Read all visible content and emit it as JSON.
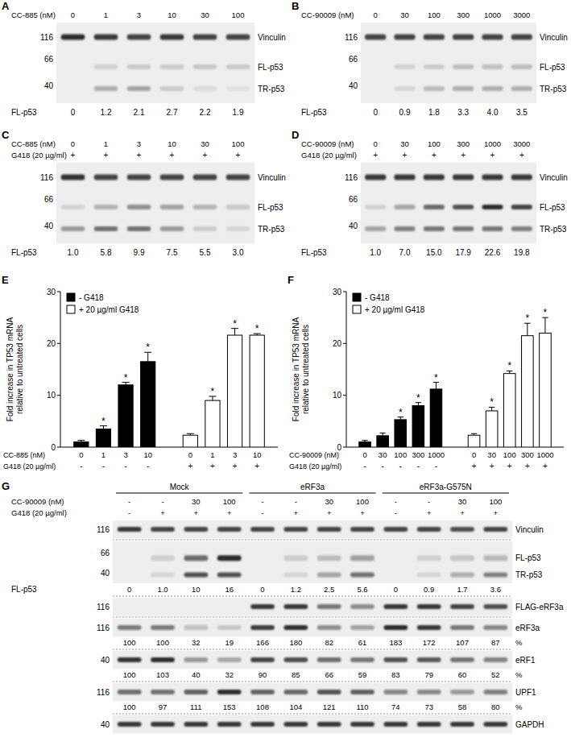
{
  "chart_data": [
    {
      "type": "bar",
      "panel": "E",
      "ylabel": [
        "Fold increase in TP53 mRNA",
        "relative to untreated cells"
      ],
      "xlabel": "CC-885 (nM)",
      "categories": [
        "0",
        "1",
        "3",
        "10",
        "0",
        "1",
        "3",
        "10"
      ],
      "second_row": {
        "label": "G418 (20 µg/ml)",
        "values": [
          "-",
          "-",
          "-",
          "-",
          "+",
          "+",
          "+",
          "+"
        ]
      },
      "series": [
        {
          "name": "- G418",
          "color": "#000000",
          "values": [
            1.0,
            3.5,
            12.0,
            16.5,
            null,
            null,
            null,
            null
          ],
          "errors": [
            0.3,
            0.6,
            0.5,
            1.8,
            null,
            null,
            null,
            null
          ],
          "significance": [
            null,
            "*",
            "*",
            "*",
            null,
            null,
            null,
            null
          ]
        },
        {
          "name": "+ 20 µg/ml G418",
          "color": "#ffffff",
          "values": [
            null,
            null,
            null,
            null,
            2.3,
            9.0,
            21.6,
            21.6
          ],
          "errors": [
            null,
            null,
            null,
            null,
            0.3,
            0.8,
            1.3,
            0.3
          ],
          "significance": [
            null,
            null,
            null,
            null,
            null,
            "*",
            "*",
            "*"
          ]
        }
      ],
      "ylim": [
        0,
        30
      ],
      "yticks": [
        0,
        10,
        20,
        30
      ],
      "legend": "top-left"
    },
    {
      "type": "bar",
      "panel": "F",
      "ylabel": [
        "Fold increase in TP53 mRNA",
        "relative to untreated cells"
      ],
      "xlabel": "CC-90009 (nM)",
      "categories": [
        "0",
        "30",
        "100",
        "300",
        "1000",
        "0",
        "30",
        "100",
        "300",
        "1000"
      ],
      "second_row": {
        "label": "G418 (20 µg/ml)",
        "values": [
          "-",
          "-",
          "-",
          "-",
          "-",
          "+",
          "+",
          "+",
          "+",
          "+"
        ]
      },
      "series": [
        {
          "name": "- G418",
          "color": "#000000",
          "values": [
            1.0,
            2.2,
            5.3,
            8.0,
            11.2,
            null,
            null,
            null,
            null,
            null
          ],
          "errors": [
            0.3,
            0.5,
            0.5,
            0.6,
            1.3,
            null,
            null,
            null,
            null,
            null
          ],
          "significance": [
            null,
            null,
            "*",
            "*",
            "*",
            null,
            null,
            null,
            null,
            null
          ]
        },
        {
          "name": "+ 20 µg/ml G418",
          "color": "#ffffff",
          "values": [
            null,
            null,
            null,
            null,
            null,
            2.3,
            7.0,
            14.2,
            21.5,
            22.0
          ],
          "errors": [
            null,
            null,
            null,
            null,
            null,
            0.3,
            0.7,
            0.5,
            2.4,
            3.0
          ],
          "significance": [
            null,
            null,
            null,
            null,
            null,
            null,
            "*",
            "*",
            "*",
            "*"
          ]
        }
      ],
      "ylim": [
        0,
        30
      ],
      "yticks": [
        0,
        10,
        20,
        30
      ],
      "legend": "top-left"
    }
  ],
  "blots": [
    {
      "panel": "A",
      "dose_label": "CC-885 (nM)",
      "doses": [
        0,
        1,
        3,
        10,
        30,
        100
      ],
      "g418": null,
      "markers": [
        116,
        66,
        40
      ],
      "bands": [
        {
          "label": "Vinculin",
          "intensity": [
            0.9,
            0.85,
            0.8,
            0.85,
            0.8,
            0.8
          ]
        },
        {
          "label": "FL-p53"
        },
        {
          "label": "TR-p53",
          "intensity": [
            0,
            0.3,
            0.35,
            0.15,
            0.08,
            0.05
          ]
        }
      ],
      "quant": {
        "label": "FL-p53",
        "values": [
          0,
          1.2,
          2.1,
          2.7,
          2.2,
          1.9
        ],
        "value_labels": [
          "0",
          "1.2",
          "2.1",
          "2.7",
          "2.2",
          "1.9"
        ]
      }
    },
    {
      "panel": "B",
      "dose_label": "CC-90009 (nM)",
      "doses": [
        0,
        30,
        100,
        300,
        1000,
        3000
      ],
      "g418": null,
      "markers": [
        116,
        66,
        40
      ],
      "bands": [
        {
          "label": "Vinculin",
          "intensity": [
            0.8,
            0.8,
            0.8,
            0.8,
            0.8,
            0.8
          ]
        },
        {
          "label": "FL-p53"
        },
        {
          "label": "TR-p53",
          "intensity": [
            0,
            0.1,
            0.25,
            0.3,
            0.3,
            0.3
          ]
        }
      ],
      "quant": {
        "label": "FL-p53",
        "values": [
          0,
          0.9,
          1.8,
          3.3,
          4.0,
          3.5
        ],
        "value_labels": [
          "0",
          "0.9",
          "1.8",
          "3.3",
          "4.0",
          "3.5"
        ]
      }
    },
    {
      "panel": "C",
      "dose_label": "CC-885 (nM)",
      "doses": [
        0,
        1,
        3,
        10,
        30,
        100
      ],
      "g418": {
        "label": "G418 (20 µg/ml)",
        "values": [
          "+",
          "+",
          "+",
          "+",
          "+",
          "+"
        ]
      },
      "markers": [
        116,
        66,
        40
      ],
      "bands": [
        {
          "label": "Vinculin",
          "intensity": [
            0.88,
            0.8,
            0.8,
            0.8,
            0.8,
            0.8
          ]
        },
        {
          "label": "FL-p53"
        },
        {
          "label": "TR-p53",
          "intensity": [
            0.4,
            0.6,
            0.6,
            0.4,
            0.15,
            0.1
          ]
        }
      ],
      "quant": {
        "label": "FL-p53",
        "values": [
          1.0,
          5.8,
          9.9,
          7.5,
          5.5,
          3.0
        ],
        "value_labels": [
          "1.0",
          "5.8",
          "9.9",
          "7.5",
          "5.5",
          "3.0"
        ]
      }
    },
    {
      "panel": "D",
      "dose_label": "CC-90009 (nM)",
      "doses": [
        0,
        30,
        100,
        300,
        1000,
        3000
      ],
      "g418": {
        "label": "G418 (20 µg/ml)",
        "values": [
          "+",
          "+",
          "+",
          "+",
          "+",
          "+"
        ]
      },
      "markers": [
        116,
        66,
        40
      ],
      "bands": [
        {
          "label": "Vinculin",
          "intensity": [
            0.85,
            0.85,
            0.85,
            0.85,
            0.85,
            0.85
          ]
        },
        {
          "label": "FL-p53"
        },
        {
          "label": "TR-p53",
          "intensity": [
            0.35,
            0.5,
            0.55,
            0.55,
            0.55,
            0.5
          ]
        }
      ],
      "quant": {
        "label": "FL-p53",
        "values": [
          1.0,
          7.0,
          15.0,
          17.9,
          22.6,
          19.8
        ],
        "value_labels": [
          "1.0",
          "7.0",
          "15.0",
          "17.9",
          "22.6",
          "19.8"
        ]
      }
    }
  ],
  "panel_g": {
    "panel": "G",
    "groups": [
      "Mock",
      "eRF3a",
      "eRF3a-G575N"
    ],
    "rows": [
      {
        "label": "CC-90009 (nM)",
        "values": [
          "-",
          "-",
          "30",
          "100",
          "-",
          "-",
          "30",
          "100",
          "-",
          "-",
          "30",
          "100"
        ]
      },
      {
        "label": "G418 (20 µg/ml)",
        "values": [
          "-",
          "+",
          "+",
          "+",
          "-",
          "+",
          "+",
          "+",
          "-",
          "+",
          "+",
          "+"
        ]
      }
    ],
    "blots": [
      {
        "markers": [
          116
        ],
        "bands": [
          {
            "label": "Vinculin",
            "intensity": [
              0.85,
              0.8,
              0.8,
              0.8,
              0.8,
              0.8,
              0.8,
              0.8,
              0.8,
              0.8,
              0.75,
              0.8
            ]
          }
        ]
      },
      {
        "markers": [
          66,
          40
        ],
        "bands": [
          {
            "label": "FL-p53"
          },
          {
            "label": "TR-p53",
            "intensity": [
              0,
              0.1,
              0.75,
              0.75,
              0,
              0.1,
              0.35,
              0.6,
              0,
              0.1,
              0.3,
              0.5
            ]
          }
        ],
        "quant": {
          "label": "FL-p53",
          "values": [
            0,
            1.0,
            10,
            16,
            0,
            1.2,
            2.5,
            5.6,
            0,
            0.9,
            1.7,
            3.6
          ],
          "value_labels": [
            "0",
            "1.0",
            "10",
            "16",
            "0",
            "1.2",
            "2.5",
            "5.6",
            "0",
            "0.9",
            "1.7",
            "3.6"
          ]
        }
      },
      {
        "markers": [
          116
        ],
        "bands": [
          {
            "label": "FLAG-eRF3a",
            "intensity": [
              0,
              0,
              0,
              0,
              0.85,
              0.85,
              0.55,
              0.45,
              0.85,
              0.85,
              0.8,
              0.75
            ]
          }
        ]
      },
      {
        "markers": [
          116
        ],
        "bands": [
          {
            "label": "eRF3a"
          }
        ],
        "quant": {
          "unit": "%",
          "values": [
            100,
            100,
            32,
            19,
            166,
            180,
            82,
            61,
            183,
            172,
            107,
            87
          ]
        }
      },
      {
        "markers": [
          40
        ],
        "bands": [
          {
            "label": "eRF1"
          }
        ],
        "quant": {
          "unit": "%",
          "values": [
            100,
            103,
            40,
            32,
            90,
            85,
            66,
            59,
            83,
            79,
            60,
            52
          ]
        }
      },
      {
        "markers": [
          116
        ],
        "bands": [
          {
            "label": "UPF1"
          }
        ],
        "quant": {
          "unit": "%",
          "values": [
            100,
            97,
            111,
            153,
            108,
            104,
            121,
            110,
            74,
            73,
            58,
            80
          ]
        }
      },
      {
        "markers": [
          40
        ],
        "bands": [
          {
            "label": "GAPDH",
            "intensity": [
              0.85,
              0.85,
              0.85,
              0.85,
              0.85,
              0.85,
              0.85,
              0.85,
              0.85,
              0.85,
              0.85,
              0.85
            ]
          }
        ]
      }
    ]
  }
}
